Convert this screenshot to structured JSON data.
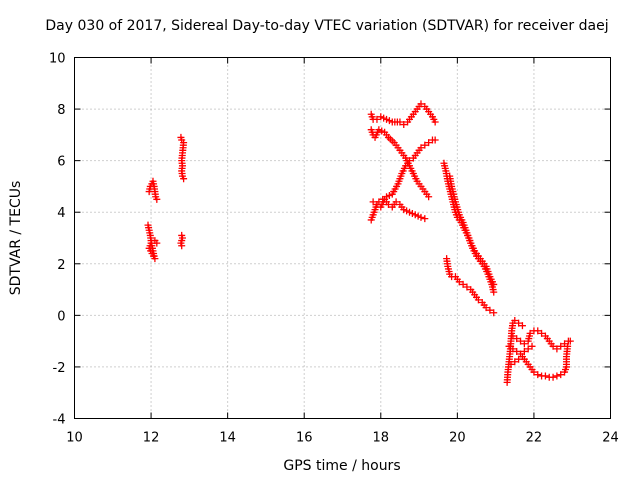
{
  "chart_data": {
    "type": "scatter",
    "title": "Day 030 of 2017, Sidereal Day-to-day VTEC variation (SDTVAR) for receiver daej",
    "xlabel": "GPS time / hours",
    "ylabel": "SDTVAR / TECUs",
    "xlim": [
      10,
      24
    ],
    "ylim": [
      -4,
      10
    ],
    "x_ticks": [
      10,
      12,
      14,
      16,
      18,
      20,
      22,
      24
    ],
    "y_ticks": [
      -4,
      -2,
      0,
      2,
      4,
      6,
      8,
      10
    ],
    "grid": true,
    "legend": "none",
    "marker": "plus",
    "color": "#ff0000",
    "series": [
      {
        "segments": [
          [
            [
              11.92,
              3.5
            ],
            [
              11.95,
              3.3
            ],
            [
              11.98,
              3.1
            ],
            [
              12.0,
              2.9
            ],
            [
              12.02,
              2.7
            ],
            [
              12.05,
              2.5
            ],
            [
              12.08,
              2.3
            ],
            [
              12.1,
              2.2
            ],
            [
              11.95,
              2.6
            ],
            [
              12.0,
              2.8
            ],
            [
              12.1,
              2.9
            ],
            [
              12.15,
              2.8
            ]
          ],
          [
            [
              11.95,
              4.8
            ],
            [
              11.98,
              5.0
            ],
            [
              12.02,
              5.1
            ],
            [
              12.05,
              5.2
            ],
            [
              12.08,
              5.0
            ],
            [
              12.1,
              4.8
            ],
            [
              12.12,
              4.6
            ],
            [
              12.15,
              4.5
            ]
          ],
          [
            [
              12.78,
              6.9
            ],
            [
              12.8,
              6.8
            ],
            [
              12.85,
              6.7
            ],
            [
              12.8,
              6.0
            ],
            [
              12.82,
              5.8
            ],
            [
              12.8,
              5.6
            ],
            [
              12.82,
              5.4
            ],
            [
              12.85,
              5.3
            ]
          ],
          [
            [
              12.8,
              3.1
            ],
            [
              12.82,
              3.0
            ],
            [
              12.8,
              2.9
            ],
            [
              12.78,
              2.8
            ],
            [
              12.8,
              2.7
            ]
          ],
          [
            [
              17.75,
              7.8
            ],
            [
              17.8,
              7.6
            ],
            [
              17.9,
              7.6
            ],
            [
              18.0,
              7.7
            ],
            [
              18.15,
              7.6
            ],
            [
              18.3,
              7.5
            ],
            [
              18.5,
              7.5
            ],
            [
              18.6,
              7.4
            ],
            [
              18.7,
              7.5
            ],
            [
              18.8,
              7.7
            ],
            [
              18.9,
              7.9
            ],
            [
              19.0,
              8.1
            ],
            [
              19.05,
              8.2
            ],
            [
              19.15,
              8.1
            ],
            [
              19.25,
              7.9
            ],
            [
              19.35,
              7.7
            ],
            [
              19.42,
              7.5
            ]
          ],
          [
            [
              17.75,
              3.7
            ],
            [
              17.8,
              3.9
            ],
            [
              17.85,
              4.1
            ],
            [
              17.9,
              4.3
            ],
            [
              17.95,
              4.4
            ],
            [
              18.05,
              4.5
            ],
            [
              18.15,
              4.6
            ],
            [
              18.3,
              4.7
            ],
            [
              18.45,
              5.1
            ],
            [
              18.55,
              5.5
            ],
            [
              18.65,
              5.8
            ],
            [
              18.75,
              6.0
            ],
            [
              18.85,
              6.1
            ],
            [
              18.95,
              6.3
            ],
            [
              19.05,
              6.5
            ],
            [
              19.15,
              6.6
            ],
            [
              19.25,
              6.7
            ],
            [
              19.35,
              6.8
            ],
            [
              19.42,
              6.8
            ]
          ],
          [
            [
              17.75,
              7.2
            ],
            [
              17.8,
              7.0
            ],
            [
              17.85,
              6.9
            ],
            [
              17.95,
              7.2
            ],
            [
              18.1,
              7.1
            ],
            [
              18.2,
              6.9
            ],
            [
              18.35,
              6.7
            ],
            [
              18.5,
              6.4
            ],
            [
              18.65,
              6.1
            ],
            [
              18.75,
              5.8
            ],
            [
              18.85,
              5.5
            ],
            [
              18.95,
              5.2
            ],
            [
              19.05,
              5.0
            ],
            [
              19.15,
              4.8
            ],
            [
              19.25,
              4.6
            ]
          ],
          [
            [
              17.8,
              4.4
            ],
            [
              17.9,
              4.3
            ],
            [
              18.0,
              4.2
            ],
            [
              18.1,
              4.5
            ],
            [
              18.2,
              4.3
            ],
            [
              18.3,
              4.2
            ],
            [
              18.4,
              4.4
            ],
            [
              18.5,
              4.3
            ],
            [
              18.6,
              4.1
            ],
            [
              18.75,
              4.0
            ],
            [
              18.9,
              3.9
            ],
            [
              19.05,
              3.8
            ],
            [
              19.15,
              3.75
            ]
          ],
          [
            [
              19.65,
              5.9
            ],
            [
              19.7,
              5.6
            ],
            [
              19.75,
              5.2
            ],
            [
              19.8,
              4.9
            ],
            [
              19.85,
              4.6
            ],
            [
              19.9,
              4.3
            ],
            [
              19.95,
              4.0
            ],
            [
              20.0,
              3.8
            ],
            [
              20.1,
              3.6
            ],
            [
              20.2,
              3.3
            ],
            [
              20.3,
              3.0
            ],
            [
              20.4,
              2.6
            ],
            [
              20.5,
              2.3
            ],
            [
              20.6,
              2.1
            ],
            [
              20.7,
              1.9
            ],
            [
              20.8,
              1.6
            ],
            [
              20.9,
              1.2
            ],
            [
              20.95,
              0.9
            ]
          ],
          [
            [
              19.8,
              5.4
            ],
            [
              19.85,
              5.0
            ],
            [
              19.9,
              4.7
            ],
            [
              19.95,
              4.4
            ],
            [
              20.05,
              3.9
            ],
            [
              20.15,
              3.6
            ],
            [
              20.25,
              3.2
            ],
            [
              20.35,
              2.8
            ],
            [
              20.45,
              2.5
            ],
            [
              20.55,
              2.3
            ],
            [
              20.65,
              2.1
            ],
            [
              20.75,
              1.9
            ],
            [
              20.85,
              1.5
            ],
            [
              20.95,
              1.2
            ]
          ],
          [
            [
              19.72,
              2.2
            ],
            [
              19.75,
              1.9
            ],
            [
              19.8,
              1.6
            ],
            [
              19.85,
              1.5
            ],
            [
              19.95,
              1.5
            ],
            [
              20.05,
              1.3
            ],
            [
              20.15,
              1.2
            ],
            [
              20.25,
              1.1
            ],
            [
              20.35,
              1.0
            ],
            [
              20.45,
              0.8
            ],
            [
              20.55,
              0.6
            ],
            [
              20.65,
              0.5
            ],
            [
              20.75,
              0.3
            ],
            [
              20.85,
              0.2
            ],
            [
              20.95,
              0.1
            ]
          ],
          [
            [
              21.3,
              -2.6
            ],
            [
              21.32,
              -2.2
            ],
            [
              21.35,
              -1.8
            ],
            [
              21.38,
              -1.4
            ],
            [
              21.4,
              -1.0
            ],
            [
              21.42,
              -0.6
            ],
            [
              21.45,
              -0.3
            ],
            [
              21.5,
              -0.2
            ],
            [
              21.6,
              -0.3
            ],
            [
              21.7,
              -0.4
            ]
          ],
          [
            [
              21.4,
              -1.9
            ],
            [
              21.5,
              -1.8
            ],
            [
              21.6,
              -1.7
            ],
            [
              21.7,
              -1.6
            ],
            [
              21.8,
              -1.8
            ],
            [
              21.9,
              -2.0
            ],
            [
              22.0,
              -2.2
            ],
            [
              22.1,
              -2.3
            ],
            [
              22.2,
              -2.35
            ],
            [
              22.3,
              -2.35
            ],
            [
              22.4,
              -2.4
            ],
            [
              22.5,
              -2.4
            ],
            [
              22.6,
              -2.35
            ],
            [
              22.7,
              -2.3
            ],
            [
              22.8,
              -2.2
            ],
            [
              22.85,
              -2.0
            ],
            [
              22.85,
              -1.6
            ],
            [
              22.88,
              -1.2
            ]
          ],
          [
            [
              21.45,
              -0.8
            ],
            [
              21.55,
              -0.9
            ],
            [
              21.65,
              -1.0
            ],
            [
              21.75,
              -1.1
            ],
            [
              21.85,
              -1.0
            ],
            [
              21.9,
              -0.7
            ],
            [
              22.0,
              -0.6
            ],
            [
              22.1,
              -0.6
            ],
            [
              22.2,
              -0.7
            ],
            [
              22.3,
              -0.8
            ],
            [
              22.4,
              -1.0
            ],
            [
              22.5,
              -1.2
            ],
            [
              22.6,
              -1.3
            ],
            [
              22.7,
              -1.2
            ],
            [
              22.8,
              -1.1
            ],
            [
              22.9,
              -1.0
            ],
            [
              22.95,
              -1.0
            ]
          ],
          [
            [
              21.35,
              -1.2
            ],
            [
              21.45,
              -1.3
            ],
            [
              21.55,
              -1.4
            ],
            [
              21.65,
              -1.5
            ],
            [
              21.75,
              -1.4
            ],
            [
              21.85,
              -1.3
            ],
            [
              21.95,
              -1.2
            ]
          ]
        ]
      }
    ]
  }
}
